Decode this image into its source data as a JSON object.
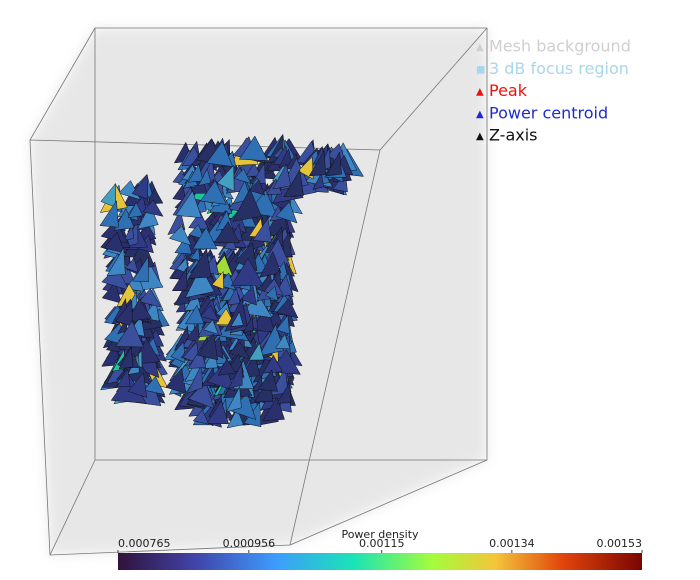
{
  "legend": [
    {
      "label": "Mesh background",
      "color": "#cfcfcf",
      "marker": "▲"
    },
    {
      "label": "3 dB focus region",
      "color": "#a9d6ea",
      "marker": "■"
    },
    {
      "label": "Peak",
      "color": "#e8130f",
      "marker": "▲"
    },
    {
      "label": "Power centroid",
      "color": "#1f2bd0",
      "marker": "▲"
    },
    {
      "label": "Z-axis",
      "color": "#111111",
      "marker": "▲"
    }
  ],
  "colorbar": {
    "title": "Power density",
    "ticks": [
      0.000765,
      0.000956,
      0.00115,
      0.00134,
      0.00153
    ]
  }
}
